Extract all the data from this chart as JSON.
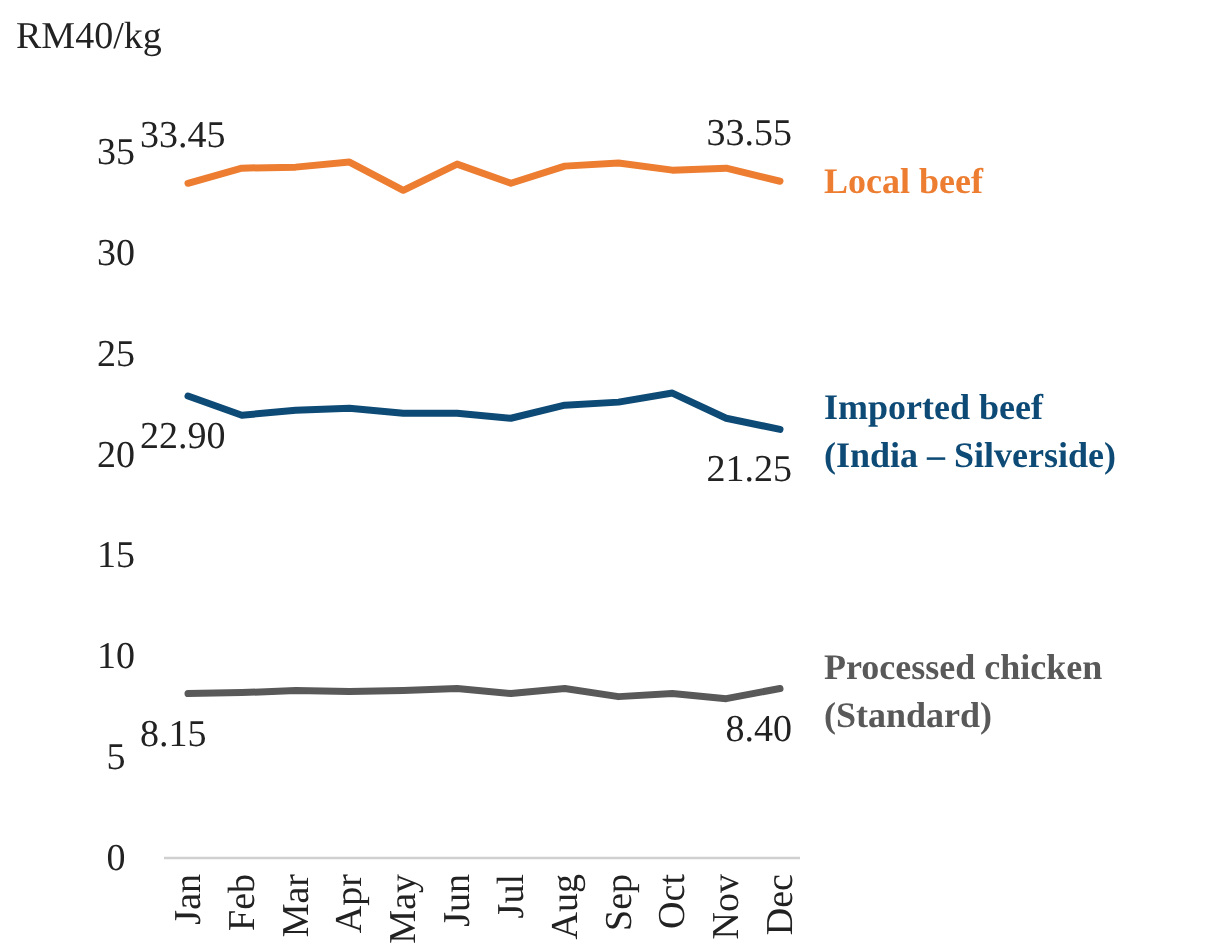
{
  "chart_data": {
    "type": "line",
    "ylabel": "RM40/kg",
    "categories": [
      "Jan",
      "Feb",
      "Mar",
      "Apr",
      "May",
      "Jun",
      "Jul",
      "Aug",
      "Sep",
      "Oct",
      "Nov",
      "Dec"
    ],
    "series": [
      {
        "name": "Local beef",
        "color": "#ed7d31",
        "values": [
          33.45,
          34.2,
          34.25,
          34.5,
          33.1,
          34.4,
          33.45,
          34.3,
          34.45,
          34.1,
          34.2,
          33.55
        ],
        "value_labels": [
          "33.45",
          null,
          null,
          null,
          null,
          null,
          null,
          null,
          null,
          null,
          null,
          "33.55"
        ]
      },
      {
        "name": "Imported beef (India – Silverside)",
        "color": "#0d4a75",
        "values": [
          22.9,
          21.95,
          22.2,
          22.3,
          22.05,
          22.05,
          21.8,
          22.45,
          22.6,
          23.05,
          21.8,
          21.25
        ],
        "value_labels": [
          "22.90",
          null,
          null,
          null,
          null,
          null,
          null,
          null,
          null,
          null,
          null,
          "21.25"
        ]
      },
      {
        "name": "Processed chicken (Standard)",
        "color": "#595959",
        "values": [
          8.15,
          8.2,
          8.3,
          8.25,
          8.3,
          8.4,
          8.15,
          8.4,
          8.0,
          8.15,
          7.9,
          8.4
        ],
        "value_labels": [
          "8.15",
          null,
          null,
          null,
          null,
          null,
          null,
          null,
          null,
          null,
          null,
          "8.40"
        ]
      }
    ],
    "ylim": [
      0,
      35
    ],
    "yticks": [
      0,
      5,
      10,
      15,
      20,
      25,
      30,
      35
    ],
    "grid": false,
    "marker": "none",
    "line_style": "solid"
  }
}
